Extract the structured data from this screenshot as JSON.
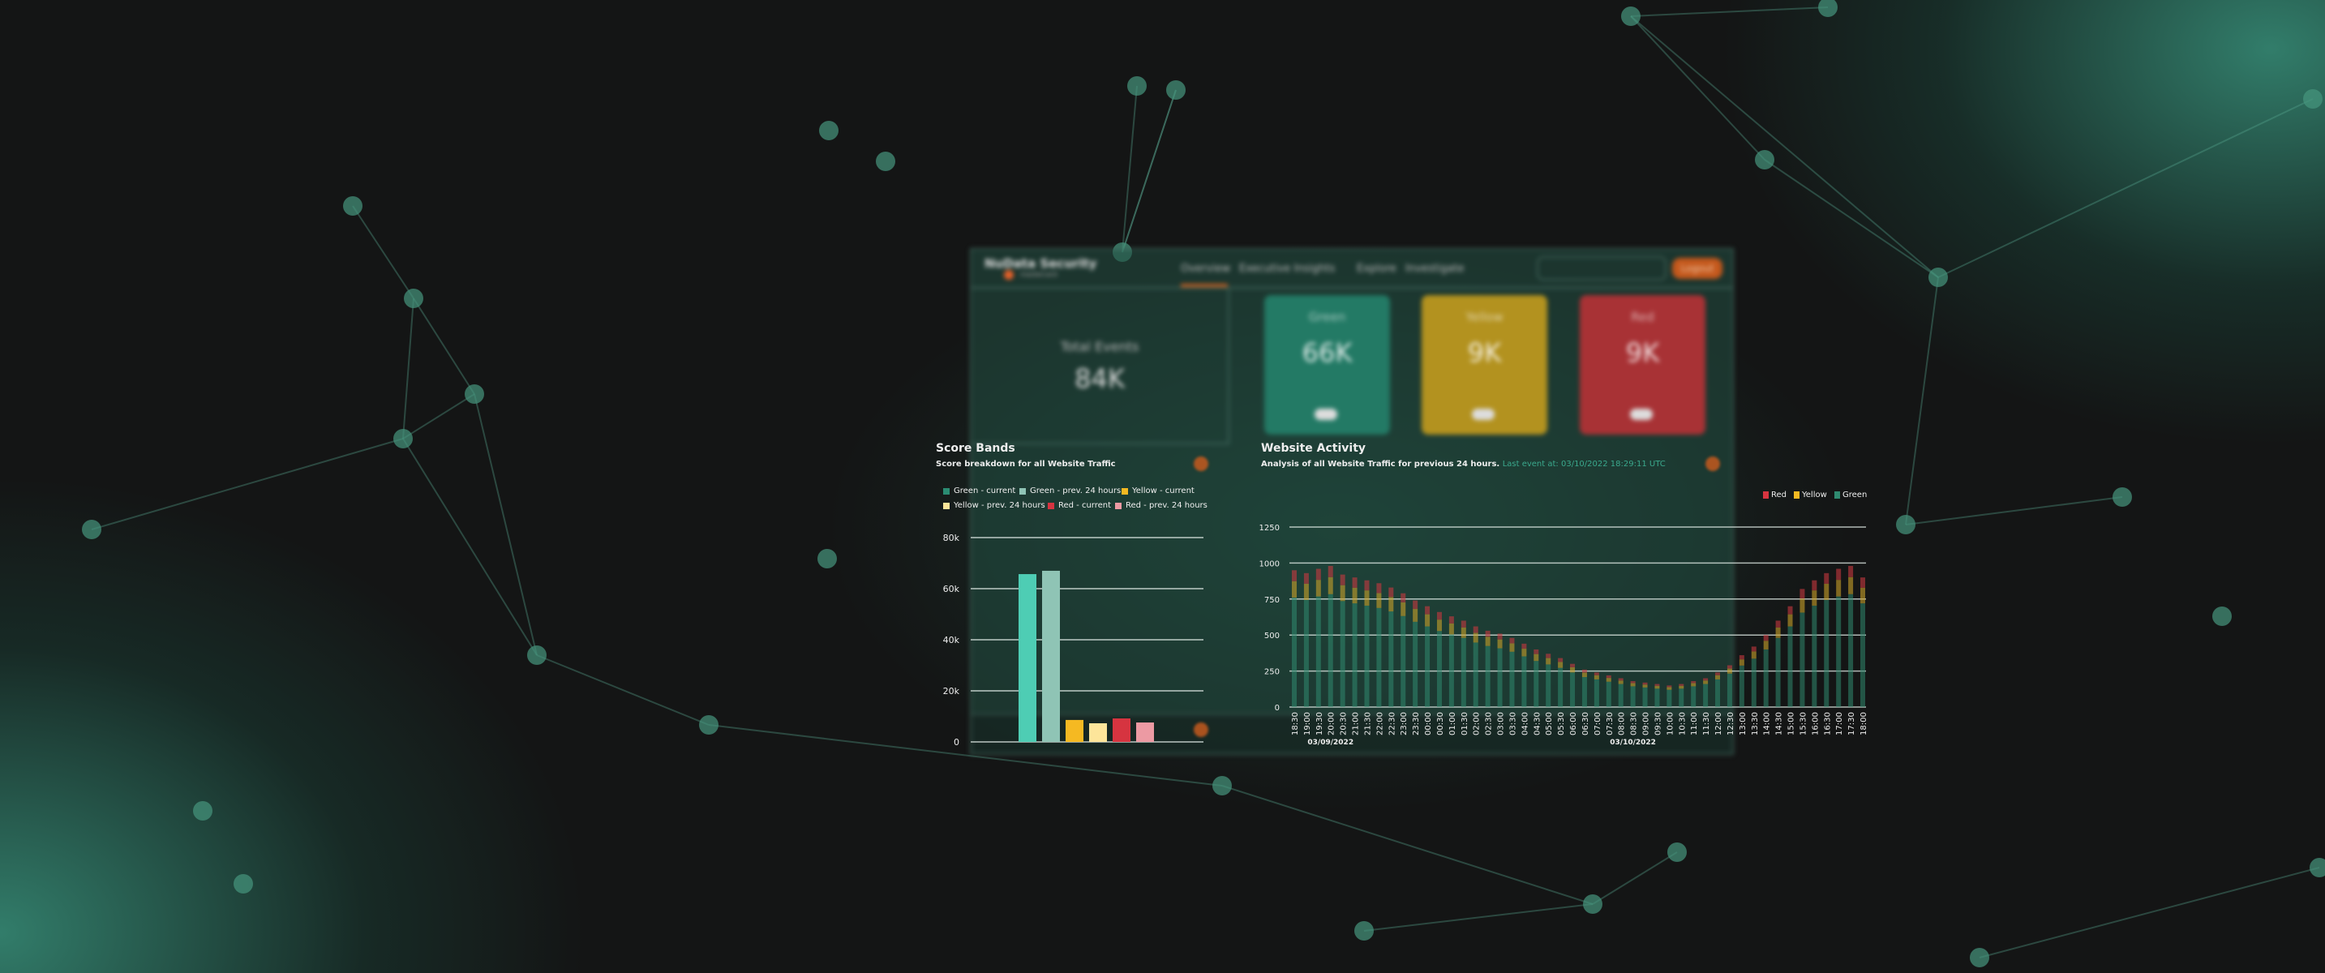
{
  "app": {
    "brand": "NuData Security",
    "brand_sub": "mastercard",
    "nav": [
      "Overview",
      "Executive Insights",
      "Explore",
      "Investigate"
    ],
    "active_nav": "Overview",
    "logout": "Logout"
  },
  "summary": {
    "total_label": "Total Events",
    "total_value": "84K",
    "cards": [
      {
        "label": "Green",
        "value": "66K",
        "color": "#237a65"
      },
      {
        "label": "Yellow",
        "value": "9K",
        "color": "#b3921f"
      },
      {
        "label": "Red",
        "value": "9K",
        "color": "#a83235"
      }
    ]
  },
  "score_bands": {
    "title": "Score Bands",
    "subtitle": "Score breakdown for all Website Traffic"
  },
  "website_activity": {
    "title": "Website Activity",
    "subtitle": "Analysis of all Website Traffic for previous 24 hours.",
    "last_event": "Last event at: 03/10/2022 18:29:11 UTC"
  },
  "chart_data": [
    {
      "type": "bar",
      "title": "Score Bands",
      "ylim": [
        0,
        80000
      ],
      "yticks": [
        "0",
        "20k",
        "40k",
        "60k",
        "80k"
      ],
      "yticks_values": [
        0,
        20000,
        40000,
        60000,
        80000
      ],
      "grid": true,
      "legend": "top-left",
      "series": [
        {
          "name": "Green - current",
          "value": 65700,
          "color": "#4ecdb4",
          "legend_color": "#2a8c72"
        },
        {
          "name": "Green - prev. 24 hours",
          "value": 67000,
          "color": "#8fc4b5",
          "legend_color": "#8fc4b5"
        },
        {
          "name": "Yellow - current",
          "value": 8600,
          "color": "#f5b922",
          "legend_color": "#f5b922"
        },
        {
          "name": "Yellow - prev. 24 hours",
          "value": 7300,
          "color": "#fde59a",
          "legend_color": "#fde59a"
        },
        {
          "name": "Red - current",
          "value": 9200,
          "color": "#d63440",
          "legend_color": "#d63440"
        },
        {
          "name": "Red - prev. 24 hours",
          "value": 7600,
          "color": "#ec9aa3",
          "legend_color": "#ec9aa3"
        }
      ]
    },
    {
      "type": "bar",
      "stacked": true,
      "title": "Website Activity",
      "ylim": [
        0,
        1250
      ],
      "yticks": [
        "0",
        "250",
        "500",
        "750",
        "1000",
        "1250"
      ],
      "yticks_values": [
        0,
        250,
        500,
        750,
        1000,
        1250
      ],
      "grid": true,
      "legend": "top-right",
      "x": [
        "18:30",
        "19:00",
        "19:30",
        "20:00",
        "20:30",
        "21:00",
        "21:30",
        "22:00",
        "22:30",
        "23:00",
        "23:30",
        "00:00",
        "00:30",
        "01:00",
        "01:30",
        "02:00",
        "02:30",
        "03:00",
        "03:30",
        "04:00",
        "04:30",
        "05:00",
        "05:30",
        "06:00",
        "06:30",
        "07:00",
        "07:30",
        "08:00",
        "08:30",
        "09:00",
        "09:30",
        "10:00",
        "10:30",
        "11:00",
        "11:30",
        "12:00",
        "12:30",
        "13:00",
        "13:30",
        "14:00",
        "14:30",
        "15:00",
        "15:30",
        "16:00",
        "16:30",
        "17:00",
        "17:30",
        "18:00"
      ],
      "date_labels": [
        {
          "label": "03/09/2022",
          "at": "20:00"
        },
        {
          "label": "03/10/2022",
          "at": "08:30"
        }
      ],
      "legend_order": [
        "Red",
        "Yellow",
        "Green"
      ],
      "series": [
        {
          "name": "Green",
          "color": "#2f8a70",
          "values": [
            760,
            744,
            768,
            784,
            736,
            720,
            704,
            688,
            664,
            632,
            592,
            560,
            528,
            504,
            480,
            448,
            424,
            408,
            384,
            352,
            320,
            296,
            272,
            240,
            208,
            192,
            176,
            160,
            144,
            136,
            128,
            120,
            128,
            144,
            160,
            192,
            232,
            288,
            336,
            400,
            480,
            560,
            656,
            704,
            744,
            768,
            784,
            720
          ]
        },
        {
          "name": "Yellow",
          "color": "#c9a12a",
          "values": [
            114,
            112,
            115,
            118,
            110,
            108,
            106,
            103,
            100,
            95,
            89,
            84,
            79,
            76,
            72,
            67,
            64,
            61,
            58,
            53,
            48,
            44,
            41,
            36,
            31,
            29,
            26,
            24,
            22,
            20,
            19,
            18,
            19,
            22,
            24,
            29,
            35,
            43,
            50,
            60,
            72,
            84,
            98,
            106,
            112,
            115,
            118,
            108
          ]
        },
        {
          "name": "Red",
          "color": "#c8383f",
          "values": [
            76,
            74,
            77,
            78,
            74,
            72,
            70,
            69,
            66,
            63,
            59,
            56,
            53,
            50,
            48,
            45,
            42,
            41,
            38,
            35,
            32,
            30,
            27,
            24,
            21,
            19,
            18,
            16,
            14,
            14,
            13,
            12,
            13,
            14,
            16,
            19,
            23,
            29,
            34,
            40,
            48,
            56,
            66,
            70,
            74,
            77,
            78,
            72
          ]
        }
      ]
    }
  ]
}
